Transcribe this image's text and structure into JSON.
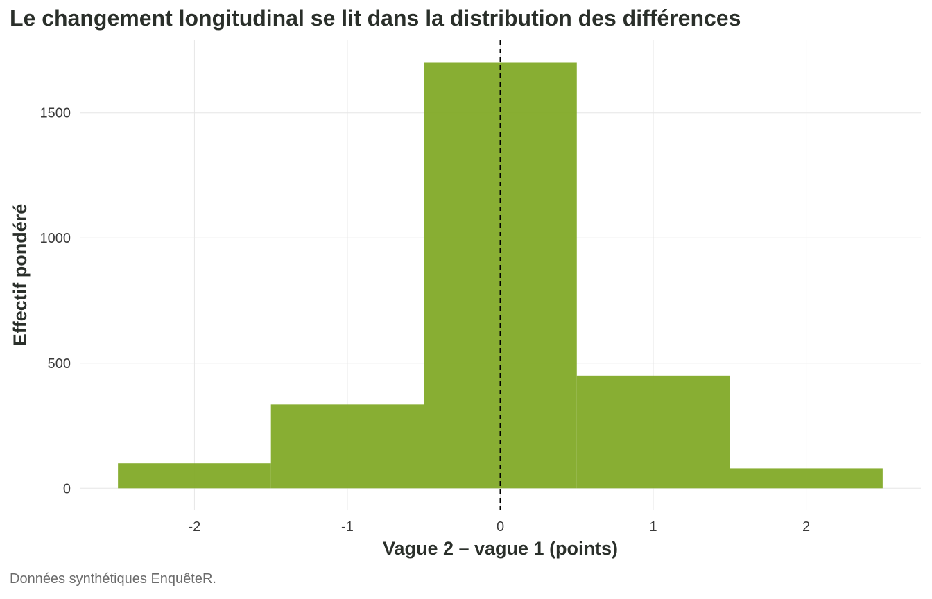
{
  "chart": {
    "title": "Le changement longitudinal se lit dans la distribution des différences",
    "caption": "Données synthétiques EnquêteR."
  },
  "chart_data": {
    "type": "bar",
    "subtype": "histogram",
    "title": "Le changement longitudinal se lit dans la distribution des différences",
    "xlabel": "Vague 2 – vague 1 (points)",
    "ylabel": "Effectif pondéré",
    "bins": [
      {
        "x0": -2.5,
        "x1": -1.5,
        "value": 100
      },
      {
        "x0": -1.5,
        "x1": -0.5,
        "value": 335
      },
      {
        "x0": -0.5,
        "x1": 0.5,
        "value": 1700
      },
      {
        "x0": 0.5,
        "x1": 1.5,
        "value": 450
      },
      {
        "x0": 1.5,
        "x1": 2.5,
        "value": 80
      }
    ],
    "xlim": [
      -2.75,
      2.75
    ],
    "ylim": [
      -85,
      1790
    ],
    "xticks": [
      -2,
      -1,
      0,
      1,
      2
    ],
    "yticks": [
      0,
      500,
      1000,
      1500
    ],
    "reference_line": {
      "x": 0,
      "style": "dashed",
      "color": "#000000"
    },
    "bar_color": "#7fa824",
    "grid": true,
    "legend": "none"
  }
}
